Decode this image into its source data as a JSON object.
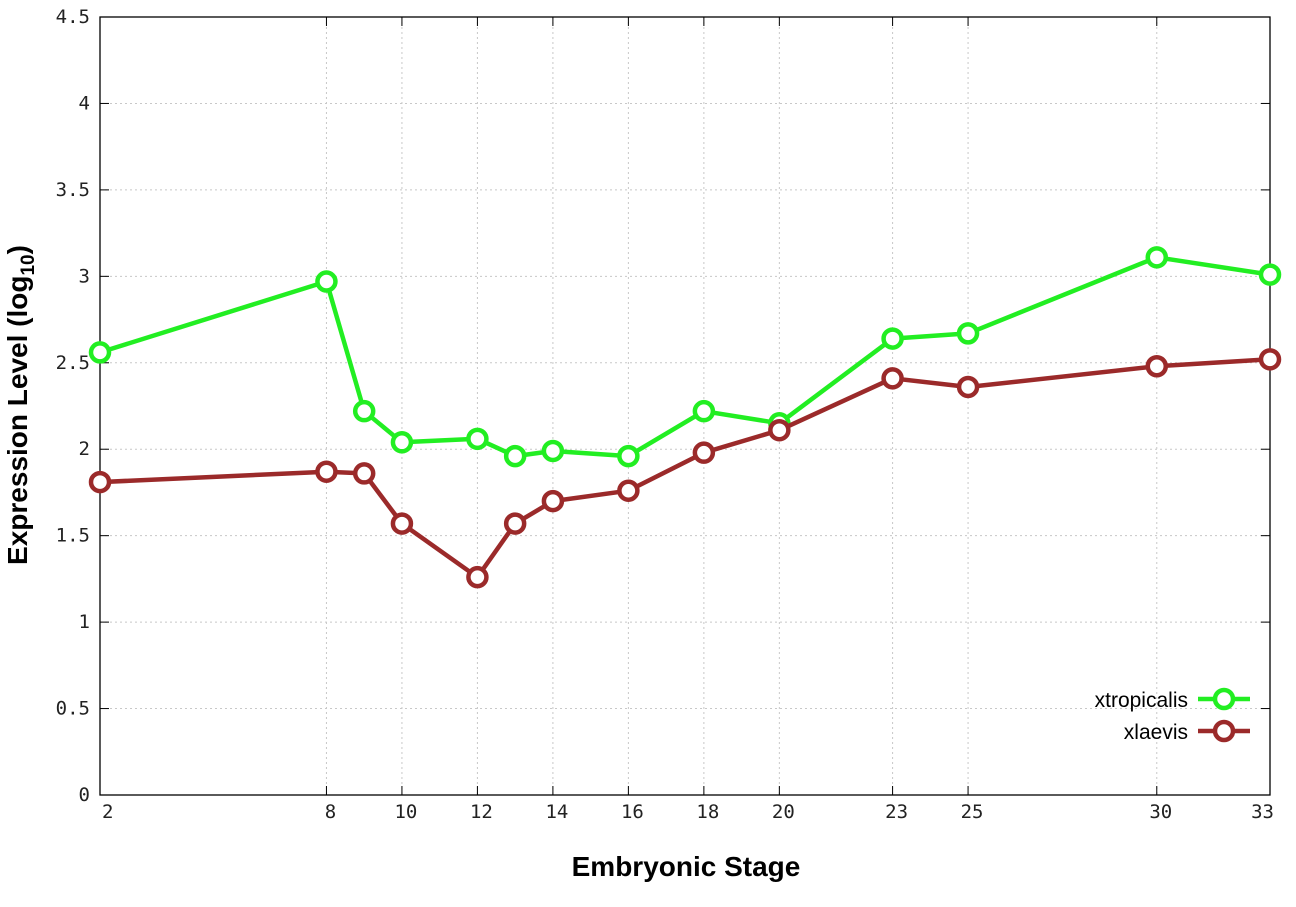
{
  "chart_data": {
    "type": "line",
    "xlabel": "Embryonic Stage",
    "ylabel_main": "Expression Level (log",
    "ylabel_sub": "10",
    "ylabel_close": ")",
    "xlim": [
      2,
      33
    ],
    "ylim": [
      0,
      4.5
    ],
    "x_ticks": [
      2,
      8,
      10,
      12,
      14,
      16,
      18,
      20,
      23,
      25,
      30,
      33
    ],
    "y_ticks": [
      0,
      0.5,
      1,
      1.5,
      2,
      2.5,
      3,
      3.5,
      4,
      4.5
    ],
    "y_tick_labels": [
      "0",
      "0.5",
      "1",
      "1.5",
      "2",
      "2.5",
      "3",
      "3.5",
      "4",
      "4.5"
    ],
    "grid": true,
    "legend_position": "bottom-right",
    "x": [
      2,
      8,
      9,
      10,
      12,
      13,
      14,
      16,
      18,
      20,
      23,
      25,
      30,
      33
    ],
    "series": [
      {
        "name": "xtropicalis",
        "color": "#22ee22",
        "values": [
          2.56,
          2.97,
          2.22,
          2.04,
          2.06,
          1.96,
          1.99,
          1.96,
          2.22,
          2.15,
          2.64,
          2.67,
          3.11,
          3.01
        ]
      },
      {
        "name": "xlaevis",
        "color": "#9b2a2a",
        "values": [
          1.81,
          1.87,
          1.86,
          1.57,
          1.26,
          1.57,
          1.7,
          1.76,
          1.98,
          2.11,
          2.41,
          2.36,
          2.48,
          2.52
        ]
      }
    ]
  }
}
